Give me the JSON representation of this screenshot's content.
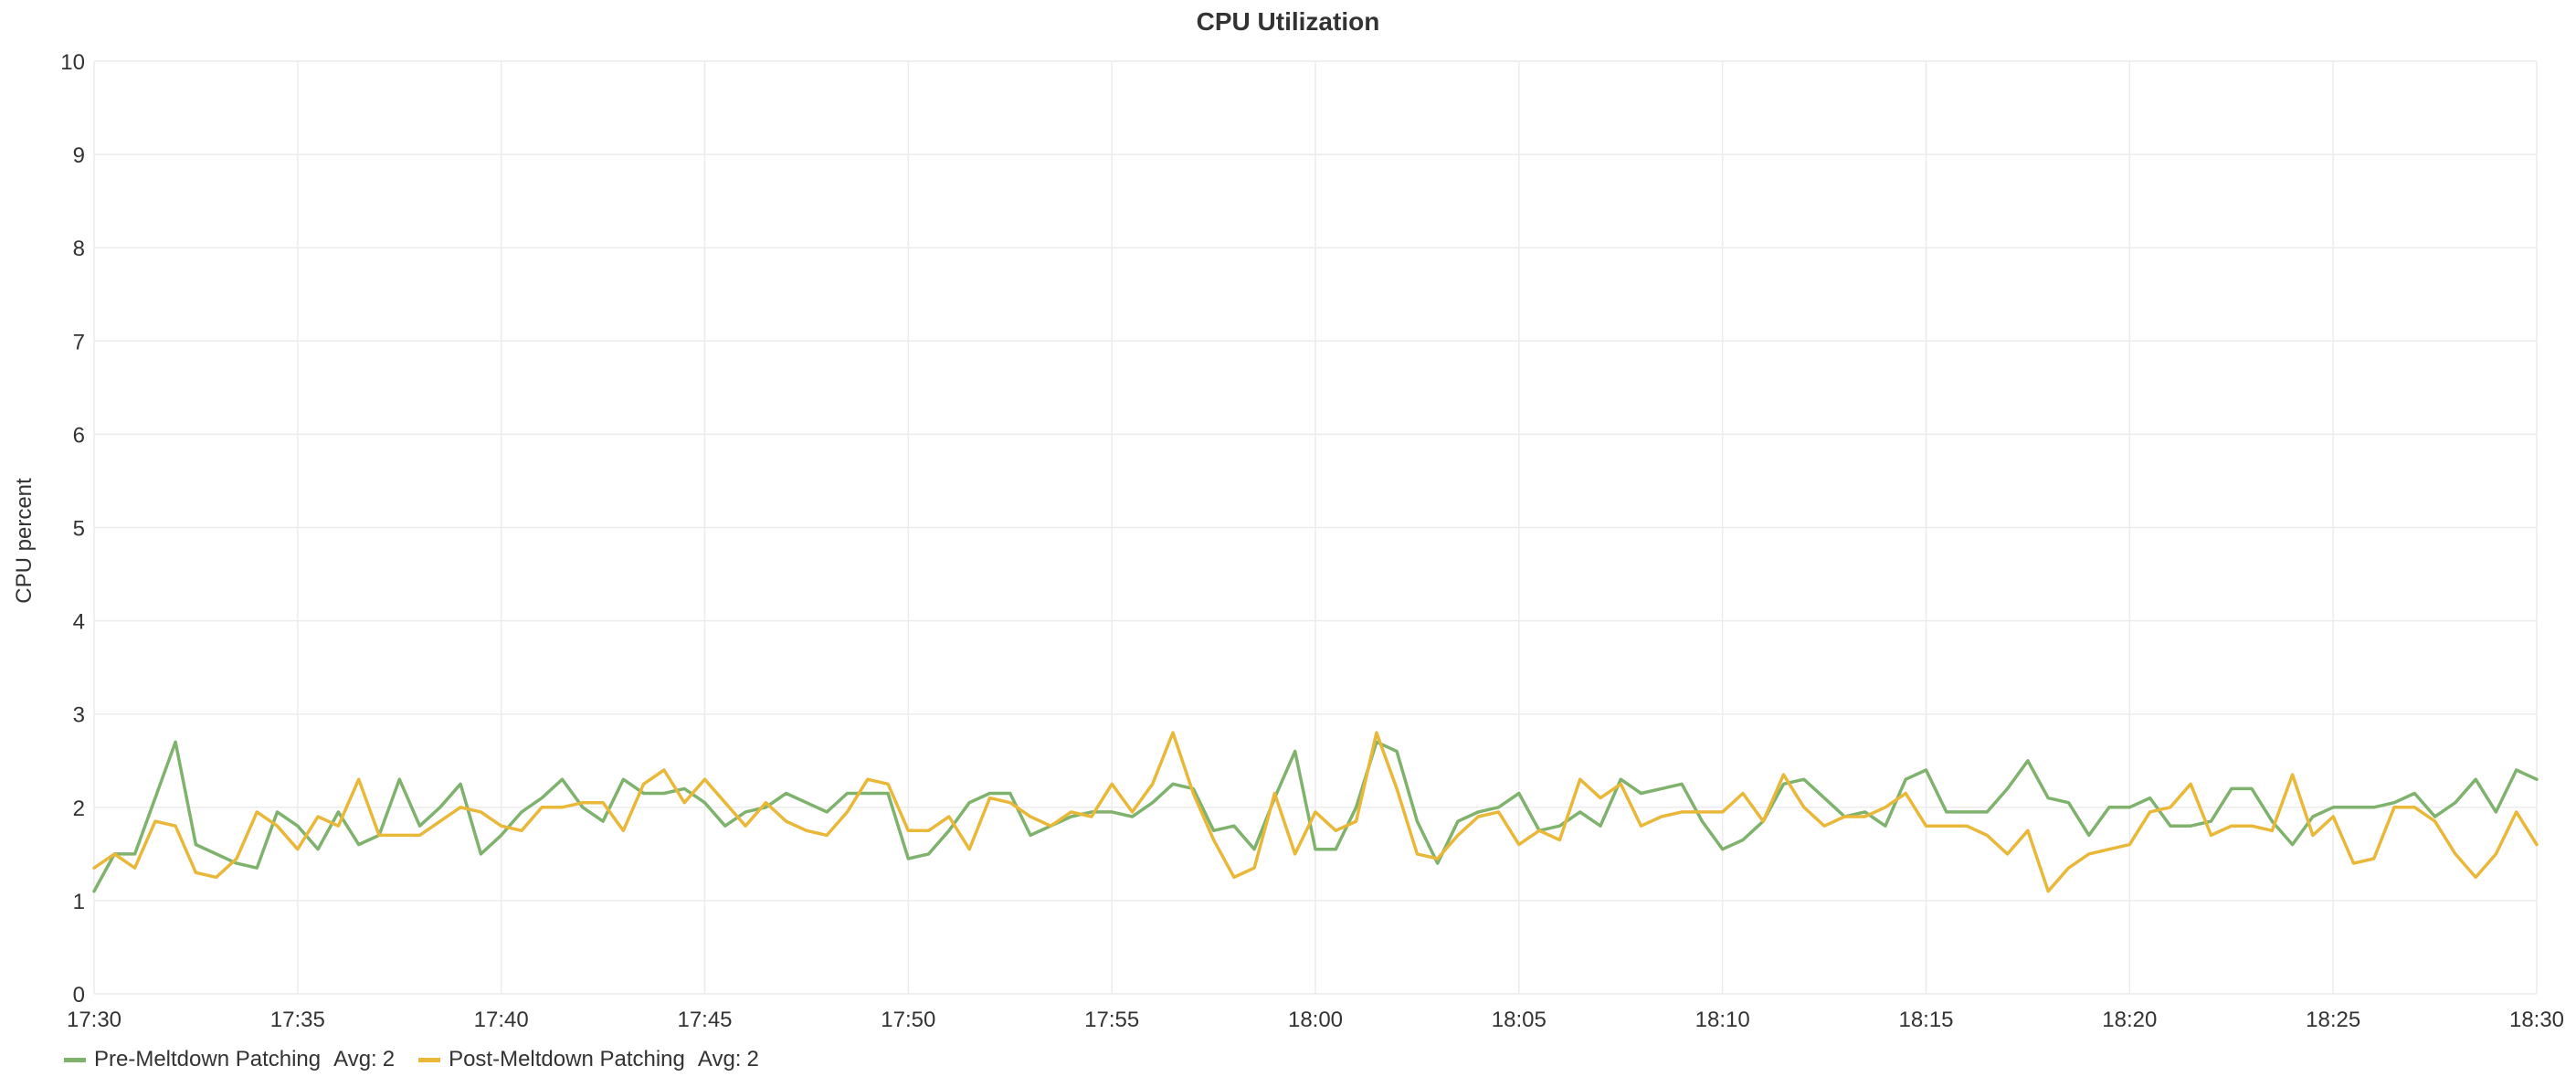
{
  "chart_data": {
    "type": "line",
    "title": "CPU Utilization",
    "ylabel": "CPU percent",
    "xlabel": "",
    "ylim": [
      0,
      10
    ],
    "xlim": [
      "17:30",
      "18:30"
    ],
    "yticks": [
      "0",
      "1",
      "2",
      "3",
      "4",
      "5",
      "6",
      "7",
      "8",
      "9",
      "10"
    ],
    "xticks": [
      "17:30",
      "17:35",
      "17:40",
      "17:45",
      "17:50",
      "17:55",
      "18:00",
      "18:05",
      "18:10",
      "18:15",
      "18:20",
      "18:25",
      "18:30"
    ],
    "grid": true,
    "legend_position": "bottom-left",
    "avg_label": "Avg:",
    "series": [
      {
        "name": "Pre-Meltdown Patching",
        "avg": "2",
        "color": "#7eb26d",
        "points": [
          [
            "17:30:00",
            1.1
          ],
          [
            "17:30:30",
            1.5
          ],
          [
            "17:31:00",
            1.5
          ],
          [
            "17:31:30",
            2.1
          ],
          [
            "17:32:00",
            2.7
          ],
          [
            "17:32:30",
            1.6
          ],
          [
            "17:33:00",
            1.5
          ],
          [
            "17:33:30",
            1.4
          ],
          [
            "17:34:00",
            1.35
          ],
          [
            "17:34:30",
            1.95
          ],
          [
            "17:35:00",
            1.8
          ],
          [
            "17:35:30",
            1.55
          ],
          [
            "17:36:00",
            1.95
          ],
          [
            "17:36:30",
            1.6
          ],
          [
            "17:37:00",
            1.7
          ],
          [
            "17:37:30",
            2.3
          ],
          [
            "17:38:00",
            1.8
          ],
          [
            "17:38:30",
            2.0
          ],
          [
            "17:39:00",
            2.25
          ],
          [
            "17:39:30",
            1.5
          ],
          [
            "17:40:00",
            1.7
          ],
          [
            "17:40:30",
            1.95
          ],
          [
            "17:41:00",
            2.1
          ],
          [
            "17:41:30",
            2.3
          ],
          [
            "17:42:00",
            2.0
          ],
          [
            "17:42:30",
            1.85
          ],
          [
            "17:43:00",
            2.3
          ],
          [
            "17:43:30",
            2.15
          ],
          [
            "17:44:00",
            2.15
          ],
          [
            "17:44:30",
            2.2
          ],
          [
            "17:45:00",
            2.05
          ],
          [
            "17:45:30",
            1.8
          ],
          [
            "17:46:00",
            1.95
          ],
          [
            "17:46:30",
            2.0
          ],
          [
            "17:47:00",
            2.15
          ],
          [
            "17:47:30",
            2.05
          ],
          [
            "17:48:00",
            1.95
          ],
          [
            "17:48:30",
            2.15
          ],
          [
            "17:49:00",
            2.15
          ],
          [
            "17:49:30",
            2.15
          ],
          [
            "17:50:00",
            1.45
          ],
          [
            "17:50:30",
            1.5
          ],
          [
            "17:51:00",
            1.75
          ],
          [
            "17:51:30",
            2.05
          ],
          [
            "17:52:00",
            2.15
          ],
          [
            "17:52:30",
            2.15
          ],
          [
            "17:53:00",
            1.7
          ],
          [
            "17:53:30",
            1.8
          ],
          [
            "17:54:00",
            1.9
          ],
          [
            "17:54:30",
            1.95
          ],
          [
            "17:55:00",
            1.95
          ],
          [
            "17:55:30",
            1.9
          ],
          [
            "17:56:00",
            2.05
          ],
          [
            "17:56:30",
            2.25
          ],
          [
            "17:57:00",
            2.2
          ],
          [
            "17:57:30",
            1.75
          ],
          [
            "17:58:00",
            1.8
          ],
          [
            "17:58:30",
            1.55
          ],
          [
            "17:59:00",
            2.1
          ],
          [
            "17:59:30",
            2.6
          ],
          [
            "18:00:00",
            1.55
          ],
          [
            "18:00:30",
            1.55
          ],
          [
            "18:01:00",
            2.0
          ],
          [
            "18:01:30",
            2.7
          ],
          [
            "18:02:00",
            2.6
          ],
          [
            "18:02:30",
            1.85
          ],
          [
            "18:03:00",
            1.4
          ],
          [
            "18:03:30",
            1.85
          ],
          [
            "18:04:00",
            1.95
          ],
          [
            "18:04:30",
            2.0
          ],
          [
            "18:05:00",
            2.15
          ],
          [
            "18:05:30",
            1.75
          ],
          [
            "18:06:00",
            1.8
          ],
          [
            "18:06:30",
            1.95
          ],
          [
            "18:07:00",
            1.8
          ],
          [
            "18:07:30",
            2.3
          ],
          [
            "18:08:00",
            2.15
          ],
          [
            "18:08:30",
            2.2
          ],
          [
            "18:09:00",
            2.25
          ],
          [
            "18:09:30",
            1.85
          ],
          [
            "18:10:00",
            1.55
          ],
          [
            "18:10:30",
            1.65
          ],
          [
            "18:11:00",
            1.85
          ],
          [
            "18:11:30",
            2.25
          ],
          [
            "18:12:00",
            2.3
          ],
          [
            "18:12:30",
            2.1
          ],
          [
            "18:13:00",
            1.9
          ],
          [
            "18:13:30",
            1.95
          ],
          [
            "18:14:00",
            1.8
          ],
          [
            "18:14:30",
            2.3
          ],
          [
            "18:15:00",
            2.4
          ],
          [
            "18:15:30",
            1.95
          ],
          [
            "18:16:00",
            1.95
          ],
          [
            "18:16:30",
            1.95
          ],
          [
            "18:17:00",
            2.2
          ],
          [
            "18:17:30",
            2.5
          ],
          [
            "18:18:00",
            2.1
          ],
          [
            "18:18:30",
            2.05
          ],
          [
            "18:19:00",
            1.7
          ],
          [
            "18:19:30",
            2.0
          ],
          [
            "18:20:00",
            2.0
          ],
          [
            "18:20:30",
            2.1
          ],
          [
            "18:21:00",
            1.8
          ],
          [
            "18:21:30",
            1.8
          ],
          [
            "18:22:00",
            1.85
          ],
          [
            "18:22:30",
            2.2
          ],
          [
            "18:23:00",
            2.2
          ],
          [
            "18:23:30",
            1.85
          ],
          [
            "18:24:00",
            1.6
          ],
          [
            "18:24:30",
            1.9
          ],
          [
            "18:25:00",
            2.0
          ],
          [
            "18:25:30",
            2.0
          ],
          [
            "18:26:00",
            2.0
          ],
          [
            "18:26:30",
            2.05
          ],
          [
            "18:27:00",
            2.15
          ],
          [
            "18:27:30",
            1.9
          ],
          [
            "18:28:00",
            2.05
          ],
          [
            "18:28:30",
            2.3
          ],
          [
            "18:29:00",
            1.95
          ],
          [
            "18:29:30",
            2.4
          ],
          [
            "18:30:00",
            2.3
          ]
        ]
      },
      {
        "name": "Post-Meltdown Patching",
        "avg": "2",
        "color": "#eab839",
        "points": [
          [
            "17:30:00",
            1.35
          ],
          [
            "17:30:30",
            1.5
          ],
          [
            "17:31:00",
            1.35
          ],
          [
            "17:31:30",
            1.85
          ],
          [
            "17:32:00",
            1.8
          ],
          [
            "17:32:30",
            1.3
          ],
          [
            "17:33:00",
            1.25
          ],
          [
            "17:33:30",
            1.45
          ],
          [
            "17:34:00",
            1.95
          ],
          [
            "17:34:30",
            1.8
          ],
          [
            "17:35:00",
            1.55
          ],
          [
            "17:35:30",
            1.9
          ],
          [
            "17:36:00",
            1.8
          ],
          [
            "17:36:30",
            2.3
          ],
          [
            "17:37:00",
            1.7
          ],
          [
            "17:37:30",
            1.7
          ],
          [
            "17:38:00",
            1.7
          ],
          [
            "17:38:30",
            1.85
          ],
          [
            "17:39:00",
            2.0
          ],
          [
            "17:39:30",
            1.95
          ],
          [
            "17:40:00",
            1.8
          ],
          [
            "17:40:30",
            1.75
          ],
          [
            "17:41:00",
            2.0
          ],
          [
            "17:41:30",
            2.0
          ],
          [
            "17:42:00",
            2.05
          ],
          [
            "17:42:30",
            2.05
          ],
          [
            "17:43:00",
            1.75
          ],
          [
            "17:43:30",
            2.25
          ],
          [
            "17:44:00",
            2.4
          ],
          [
            "17:44:30",
            2.05
          ],
          [
            "17:45:00",
            2.3
          ],
          [
            "17:45:30",
            2.05
          ],
          [
            "17:46:00",
            1.8
          ],
          [
            "17:46:30",
            2.05
          ],
          [
            "17:47:00",
            1.85
          ],
          [
            "17:47:30",
            1.75
          ],
          [
            "17:48:00",
            1.7
          ],
          [
            "17:48:30",
            1.95
          ],
          [
            "17:49:00",
            2.3
          ],
          [
            "17:49:30",
            2.25
          ],
          [
            "17:50:00",
            1.75
          ],
          [
            "17:50:30",
            1.75
          ],
          [
            "17:51:00",
            1.9
          ],
          [
            "17:51:30",
            1.55
          ],
          [
            "17:52:00",
            2.1
          ],
          [
            "17:52:30",
            2.05
          ],
          [
            "17:53:00",
            1.9
          ],
          [
            "17:53:30",
            1.8
          ],
          [
            "17:54:00",
            1.95
          ],
          [
            "17:54:30",
            1.9
          ],
          [
            "17:55:00",
            2.25
          ],
          [
            "17:55:30",
            1.95
          ],
          [
            "17:56:00",
            2.25
          ],
          [
            "17:56:30",
            2.8
          ],
          [
            "17:57:00",
            2.15
          ],
          [
            "17:57:30",
            1.65
          ],
          [
            "17:58:00",
            1.25
          ],
          [
            "17:58:30",
            1.35
          ],
          [
            "17:59:00",
            2.15
          ],
          [
            "17:59:30",
            1.5
          ],
          [
            "18:00:00",
            1.95
          ],
          [
            "18:00:30",
            1.75
          ],
          [
            "18:01:00",
            1.85
          ],
          [
            "18:01:30",
            2.8
          ],
          [
            "18:02:00",
            2.2
          ],
          [
            "18:02:30",
            1.5
          ],
          [
            "18:03:00",
            1.45
          ],
          [
            "18:03:30",
            1.7
          ],
          [
            "18:04:00",
            1.9
          ],
          [
            "18:04:30",
            1.95
          ],
          [
            "18:05:00",
            1.6
          ],
          [
            "18:05:30",
            1.75
          ],
          [
            "18:06:00",
            1.65
          ],
          [
            "18:06:30",
            2.3
          ],
          [
            "18:07:00",
            2.1
          ],
          [
            "18:07:30",
            2.25
          ],
          [
            "18:08:00",
            1.8
          ],
          [
            "18:08:30",
            1.9
          ],
          [
            "18:09:00",
            1.95
          ],
          [
            "18:09:30",
            1.95
          ],
          [
            "18:10:00",
            1.95
          ],
          [
            "18:10:30",
            2.15
          ],
          [
            "18:11:00",
            1.85
          ],
          [
            "18:11:30",
            2.35
          ],
          [
            "18:12:00",
            2.0
          ],
          [
            "18:12:30",
            1.8
          ],
          [
            "18:13:00",
            1.9
          ],
          [
            "18:13:30",
            1.9
          ],
          [
            "18:14:00",
            2.0
          ],
          [
            "18:14:30",
            2.15
          ],
          [
            "18:15:00",
            1.8
          ],
          [
            "18:15:30",
            1.8
          ],
          [
            "18:16:00",
            1.8
          ],
          [
            "18:16:30",
            1.7
          ],
          [
            "18:17:00",
            1.5
          ],
          [
            "18:17:30",
            1.75
          ],
          [
            "18:18:00",
            1.1
          ],
          [
            "18:18:30",
            1.35
          ],
          [
            "18:19:00",
            1.5
          ],
          [
            "18:19:30",
            1.55
          ],
          [
            "18:20:00",
            1.6
          ],
          [
            "18:20:30",
            1.95
          ],
          [
            "18:21:00",
            2.0
          ],
          [
            "18:21:30",
            2.25
          ],
          [
            "18:22:00",
            1.7
          ],
          [
            "18:22:30",
            1.8
          ],
          [
            "18:23:00",
            1.8
          ],
          [
            "18:23:30",
            1.75
          ],
          [
            "18:24:00",
            2.35
          ],
          [
            "18:24:30",
            1.7
          ],
          [
            "18:25:00",
            1.9
          ],
          [
            "18:25:30",
            1.4
          ],
          [
            "18:26:00",
            1.45
          ],
          [
            "18:26:30",
            2.0
          ],
          [
            "18:27:00",
            2.0
          ],
          [
            "18:27:30",
            1.85
          ],
          [
            "18:28:00",
            1.5
          ],
          [
            "18:28:30",
            1.25
          ],
          [
            "18:29:00",
            1.5
          ],
          [
            "18:29:30",
            1.95
          ],
          [
            "18:30:00",
            1.6
          ]
        ]
      }
    ]
  }
}
